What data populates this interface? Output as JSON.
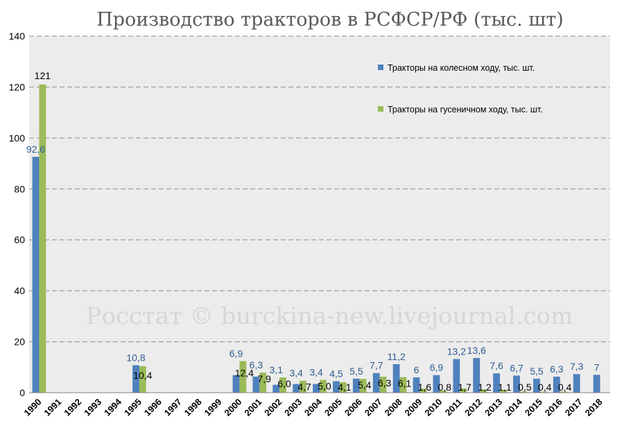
{
  "chart_data": {
    "type": "bar",
    "title": "Производство тракторов в РСФСР/РФ (тыс. шт)",
    "watermark": "Росстат © burckina-new.livejournal.com",
    "ylim": [
      0,
      140
    ],
    "yticks": [
      0,
      20,
      40,
      60,
      80,
      100,
      120,
      140
    ],
    "grid": true,
    "legend_position": "top-right",
    "categories": [
      "1990",
      "1991",
      "1992",
      "1993",
      "1994",
      "1995",
      "1996",
      "1997",
      "1998",
      "1999",
      "2000",
      "2001",
      "2002",
      "2003",
      "2004",
      "2005",
      "2006",
      "2007",
      "2008",
      "2009",
      "2010",
      "2011",
      "2012",
      "2013",
      "2014",
      "2015",
      "2016",
      "2017",
      "2018"
    ],
    "series": [
      {
        "name": "Тракторы на колесном ходу, тыс. шт.",
        "color": "#4F81BD",
        "values": [
          92.6,
          null,
          null,
          null,
          null,
          10.8,
          null,
          null,
          null,
          null,
          6.9,
          6.3,
          3.1,
          3.4,
          3.4,
          4.5,
          5.5,
          7.7,
          11.2,
          6,
          6.9,
          13.2,
          13.6,
          7.6,
          6.7,
          5.5,
          6.3,
          7.3,
          7
        ],
        "labels": [
          "92,6",
          "",
          "",
          "",
          "",
          "10,8",
          "",
          "",
          "",
          "",
          "6,9",
          "6,3",
          "3,1",
          "3,4",
          "3,4",
          "4,5",
          "5,5",
          "7,7",
          "11,2",
          "6",
          "6,9",
          "13,2",
          "13,6",
          "7,6",
          "6,7",
          "5,5",
          "6,3",
          "7,3",
          "7"
        ]
      },
      {
        "name": "Тракторы на гусеничном ходу, тыс. шт.",
        "color": "#9BBB59",
        "values": [
          121,
          null,
          null,
          null,
          null,
          10.4,
          null,
          null,
          null,
          null,
          12.4,
          7.9,
          6.0,
          4.7,
          5.0,
          4.1,
          5.4,
          6.3,
          6.1,
          1.6,
          0.8,
          1.7,
          1.2,
          1.1,
          0.5,
          0.4,
          0.4,
          null,
          null
        ],
        "labels": [
          "121",
          "",
          "",
          "",
          "",
          "10,4",
          "",
          "",
          "",
          "",
          "12,4",
          "7,9",
          "6,0",
          "4,7",
          "5,0",
          "4,1",
          "5,4",
          "6,3",
          "6,1",
          "1,6",
          "0,8",
          "1,7",
          "1,2",
          "1,1",
          "0,5",
          "0,4",
          "0,4",
          "",
          ""
        ]
      }
    ]
  }
}
